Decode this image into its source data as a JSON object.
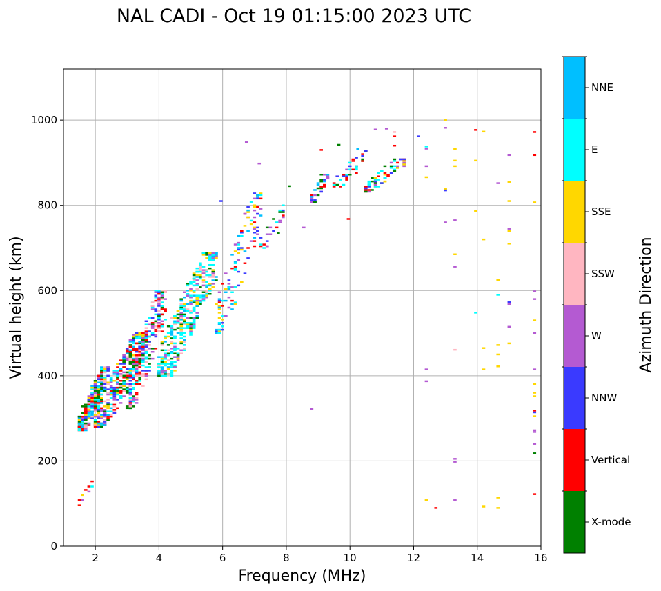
{
  "chart_data": {
    "type": "scatter",
    "title": "NAL CADI - Oct 19 01:15:00 2023 UTC",
    "xlabel": "Frequency (MHz)",
    "ylabel": "Virtual height (km)",
    "xlim": [
      1.0,
      16.0
    ],
    "ylim": [
      0,
      1120
    ],
    "x_ticks": [
      2,
      4,
      6,
      8,
      10,
      12,
      14,
      16
    ],
    "y_ticks": [
      0,
      200,
      400,
      600,
      800,
      1000
    ],
    "grid": true,
    "colorbar": {
      "label": "Azimuth Direction",
      "categories": [
        "X-mode",
        "Vertical",
        "NNW",
        "W",
        "SSW",
        "SSE",
        "E",
        "NNE"
      ],
      "colors": [
        "#008000",
        "#ff0000",
        "#3a3aff",
        "#b45ad2",
        "#ffb6c1",
        "#ffd700",
        "#00ffff",
        "#00bfff"
      ]
    },
    "cell": {
      "dx": 0.1,
      "dh": 4
    },
    "segments": [
      {
        "f": 5.95,
        "h": 810,
        "d": "NNW"
      },
      {
        "f": 6.75,
        "h": 948,
        "d": "W"
      },
      {
        "f": 7.15,
        "h": 898,
        "d": "W"
      },
      {
        "f": 8.1,
        "h": 845,
        "d": "X-mode"
      },
      {
        "f": 8.55,
        "h": 748,
        "d": "W"
      },
      {
        "f": 7.75,
        "h": 735,
        "d": "X-mode"
      },
      {
        "f": 7.6,
        "h": 740,
        "d": "NNW"
      },
      {
        "f": 8.8,
        "h": 322,
        "d": "W"
      },
      {
        "f": 9.1,
        "h": 930,
        "d": "Vertical"
      },
      {
        "f": 9.65,
        "h": 942,
        "d": "X-mode"
      },
      {
        "f": 9.95,
        "h": 768,
        "d": "Vertical"
      },
      {
        "f": 10.25,
        "h": 932,
        "d": "NNE"
      },
      {
        "f": 10.8,
        "h": 978,
        "d": "W"
      },
      {
        "f": 11.15,
        "h": 980,
        "d": "W"
      },
      {
        "f": 11.4,
        "h": 972,
        "d": "SSW"
      },
      {
        "f": 11.4,
        "h": 962,
        "d": "Vertical"
      },
      {
        "f": 11.4,
        "h": 940,
        "d": "Vertical"
      },
      {
        "f": 12.15,
        "h": 962,
        "d": "NNW"
      },
      {
        "f": 12.4,
        "h": 938,
        "d": "E"
      },
      {
        "f": 12.4,
        "h": 933,
        "d": "W"
      },
      {
        "f": 12.4,
        "h": 892,
        "d": "W"
      },
      {
        "f": 12.4,
        "h": 866,
        "d": "SSE"
      },
      {
        "f": 12.4,
        "h": 415,
        "d": "W"
      },
      {
        "f": 12.4,
        "h": 387,
        "d": "W"
      },
      {
        "f": 12.4,
        "h": 108,
        "d": "SSE"
      },
      {
        "f": 12.7,
        "h": 90,
        "d": "Vertical"
      },
      {
        "f": 13.0,
        "h": 1000,
        "d": "SSE"
      },
      {
        "f": 13.0,
        "h": 982,
        "d": "W"
      },
      {
        "f": 13.0,
        "h": 838,
        "d": "SSE"
      },
      {
        "f": 13.0,
        "h": 835,
        "d": "NNW"
      },
      {
        "f": 13.0,
        "h": 760,
        "d": "W"
      },
      {
        "f": 13.3,
        "h": 932,
        "d": "SSE"
      },
      {
        "f": 13.3,
        "h": 905,
        "d": "SSE"
      },
      {
        "f": 13.3,
        "h": 892,
        "d": "SSE"
      },
      {
        "f": 13.3,
        "h": 765,
        "d": "W"
      },
      {
        "f": 13.3,
        "h": 685,
        "d": "SSE"
      },
      {
        "f": 13.3,
        "h": 656,
        "d": "W"
      },
      {
        "f": 13.3,
        "h": 461,
        "d": "SSW"
      },
      {
        "f": 13.3,
        "h": 205,
        "d": "W"
      },
      {
        "f": 13.3,
        "h": 198,
        "d": "W"
      },
      {
        "f": 13.3,
        "h": 108,
        "d": "W"
      },
      {
        "f": 13.95,
        "h": 977,
        "d": "Vertical"
      },
      {
        "f": 13.95,
        "h": 905,
        "d": "SSE"
      },
      {
        "f": 13.95,
        "h": 787,
        "d": "SSE"
      },
      {
        "f": 13.95,
        "h": 548,
        "d": "E"
      },
      {
        "f": 14.2,
        "h": 973,
        "d": "SSE"
      },
      {
        "f": 14.2,
        "h": 720,
        "d": "SSE"
      },
      {
        "f": 14.2,
        "h": 465,
        "d": "SSE"
      },
      {
        "f": 14.2,
        "h": 415,
        "d": "SSE"
      },
      {
        "f": 14.2,
        "h": 93,
        "d": "SSE"
      },
      {
        "f": 14.65,
        "h": 852,
        "d": "W"
      },
      {
        "f": 14.65,
        "h": 625,
        "d": "SSE"
      },
      {
        "f": 14.65,
        "h": 590,
        "d": "E"
      },
      {
        "f": 14.65,
        "h": 472,
        "d": "SSE"
      },
      {
        "f": 14.65,
        "h": 450,
        "d": "SSE"
      },
      {
        "f": 14.65,
        "h": 422,
        "d": "SSE"
      },
      {
        "f": 14.65,
        "h": 114,
        "d": "SSE"
      },
      {
        "f": 14.65,
        "h": 90,
        "d": "SSE"
      },
      {
        "f": 15.0,
        "h": 918,
        "d": "W"
      },
      {
        "f": 15.0,
        "h": 855,
        "d": "SSE"
      },
      {
        "f": 15.0,
        "h": 810,
        "d": "SSE"
      },
      {
        "f": 15.0,
        "h": 745,
        "d": "W"
      },
      {
        "f": 15.0,
        "h": 740,
        "d": "SSE"
      },
      {
        "f": 15.0,
        "h": 710,
        "d": "SSE"
      },
      {
        "f": 15.0,
        "h": 573,
        "d": "NNW"
      },
      {
        "f": 15.0,
        "h": 568,
        "d": "W"
      },
      {
        "f": 15.0,
        "h": 515,
        "d": "W"
      },
      {
        "f": 15.0,
        "h": 476,
        "d": "SSE"
      },
      {
        "f": 15.8,
        "h": 972,
        "d": "Vertical"
      },
      {
        "f": 15.8,
        "h": 918,
        "d": "Vertical"
      },
      {
        "f": 15.8,
        "h": 807,
        "d": "SSE"
      },
      {
        "f": 15.8,
        "h": 598,
        "d": "W"
      },
      {
        "f": 15.8,
        "h": 580,
        "d": "W"
      },
      {
        "f": 15.8,
        "h": 530,
        "d": "SSE"
      },
      {
        "f": 15.8,
        "h": 500,
        "d": "W"
      },
      {
        "f": 15.8,
        "h": 415,
        "d": "W"
      },
      {
        "f": 15.8,
        "h": 380,
        "d": "SSE"
      },
      {
        "f": 15.8,
        "h": 360,
        "d": "SSE"
      },
      {
        "f": 15.8,
        "h": 352,
        "d": "SSE"
      },
      {
        "f": 15.8,
        "h": 318,
        "d": "Vertical"
      },
      {
        "f": 15.8,
        "h": 314,
        "d": "NNW"
      },
      {
        "f": 15.8,
        "h": 305,
        "d": "SSE"
      },
      {
        "f": 15.8,
        "h": 272,
        "d": "W"
      },
      {
        "f": 15.8,
        "h": 268,
        "d": "W"
      },
      {
        "f": 15.8,
        "h": 240,
        "d": "W"
      },
      {
        "f": 15.8,
        "h": 218,
        "d": "X-mode"
      },
      {
        "f": 15.8,
        "h": 122,
        "d": "Vertical"
      }
    ],
    "clusters": [
      {
        "f": [
          1.5,
          2.4
        ],
        "h": [
          270,
          420
        ],
        "n": 320,
        "d": [
          "Vertical",
          "NNW",
          "E",
          "SSE",
          "SSW",
          "X-mode",
          "W",
          "NNE"
        ]
      },
      {
        "f": [
          2.0,
          3.6
        ],
        "h": [
          280,
          500
        ],
        "n": 420,
        "d": [
          "E",
          "NNW",
          "Vertical",
          "SSW",
          "X-mode",
          "W",
          "NNE",
          "SSE"
        ]
      },
      {
        "f": [
          3.0,
          4.2
        ],
        "h": [
          320,
          600
        ],
        "n": 260,
        "d": [
          "X-mode",
          "E",
          "NNW",
          "Vertical",
          "W",
          "SSW"
        ]
      },
      {
        "f": [
          4.0,
          5.8
        ],
        "h": [
          400,
          690
        ],
        "n": 480,
        "d": [
          "E",
          "E",
          "E",
          "NNE",
          "SSE",
          "X-mode",
          "W",
          "SSW"
        ]
      },
      {
        "f": [
          5.8,
          7.2
        ],
        "h": [
          500,
          830
        ],
        "n": 130,
        "d": [
          "W",
          "NNW",
          "E",
          "SSE",
          "Vertical",
          "NNE"
        ]
      },
      {
        "f": [
          7.2,
          8.0
        ],
        "h": [
          700,
          800
        ],
        "n": 25,
        "d": [
          "NNW",
          "E",
          "W",
          "X-mode",
          "Vertical"
        ]
      },
      {
        "f": [
          8.8,
          9.3
        ],
        "h": [
          805,
          880
        ],
        "n": 40,
        "d": [
          "NNW",
          "W",
          "Vertical",
          "X-mode",
          "NNE"
        ]
      },
      {
        "f": [
          9.5,
          10.6
        ],
        "h": [
          840,
          930
        ],
        "n": 40,
        "d": [
          "Vertical",
          "NNW",
          "W",
          "X-mode",
          "E"
        ]
      },
      {
        "f": [
          10.4,
          11.7
        ],
        "h": [
          830,
          910
        ],
        "n": 70,
        "d": [
          "Vertical",
          "NNW",
          "E",
          "X-mode",
          "W",
          "SSE"
        ]
      },
      {
        "f": [
          1.5,
          1.9
        ],
        "h": [
          88,
          155
        ],
        "n": 10,
        "d": [
          "SSE",
          "Vertical",
          "W",
          "E"
        ]
      }
    ]
  }
}
